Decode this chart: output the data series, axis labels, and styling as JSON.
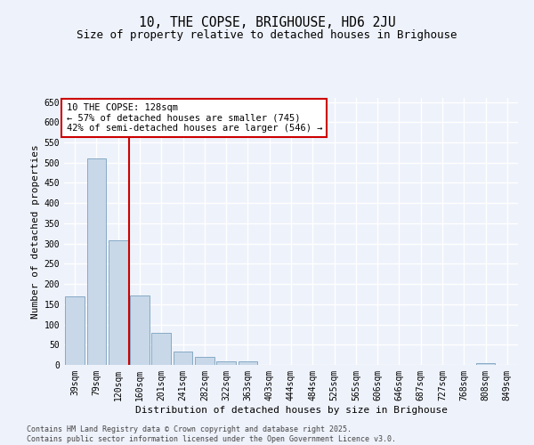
{
  "title": "10, THE COPSE, BRIGHOUSE, HD6 2JU",
  "subtitle": "Size of property relative to detached houses in Brighouse",
  "xlabel": "Distribution of detached houses by size in Brighouse",
  "ylabel": "Number of detached properties",
  "categories": [
    "39sqm",
    "79sqm",
    "120sqm",
    "160sqm",
    "201sqm",
    "241sqm",
    "282sqm",
    "322sqm",
    "363sqm",
    "403sqm",
    "444sqm",
    "484sqm",
    "525sqm",
    "565sqm",
    "606sqm",
    "646sqm",
    "687sqm",
    "727sqm",
    "768sqm",
    "808sqm",
    "849sqm"
  ],
  "values": [
    170,
    510,
    308,
    172,
    80,
    33,
    20,
    8,
    8,
    0,
    0,
    0,
    0,
    0,
    0,
    0,
    0,
    0,
    0,
    5,
    0
  ],
  "bar_color": "#c8d8e8",
  "bar_edge_color": "#7aa0be",
  "vline_x": 2.5,
  "vline_color": "#cc0000",
  "annotation_text": "10 THE COPSE: 128sqm\n← 57% of detached houses are smaller (745)\n42% of semi-detached houses are larger (546) →",
  "ylim": [
    0,
    660
  ],
  "yticks": [
    0,
    50,
    100,
    150,
    200,
    250,
    300,
    350,
    400,
    450,
    500,
    550,
    600,
    650
  ],
  "footer_line1": "Contains HM Land Registry data © Crown copyright and database right 2025.",
  "footer_line2": "Contains public sector information licensed under the Open Government Licence v3.0.",
  "background_color": "#eef2fb",
  "grid_color": "#ffffff",
  "title_fontsize": 10.5,
  "subtitle_fontsize": 9,
  "axis_label_fontsize": 8,
  "tick_fontsize": 7,
  "annotation_fontsize": 7.5,
  "footer_fontsize": 6
}
